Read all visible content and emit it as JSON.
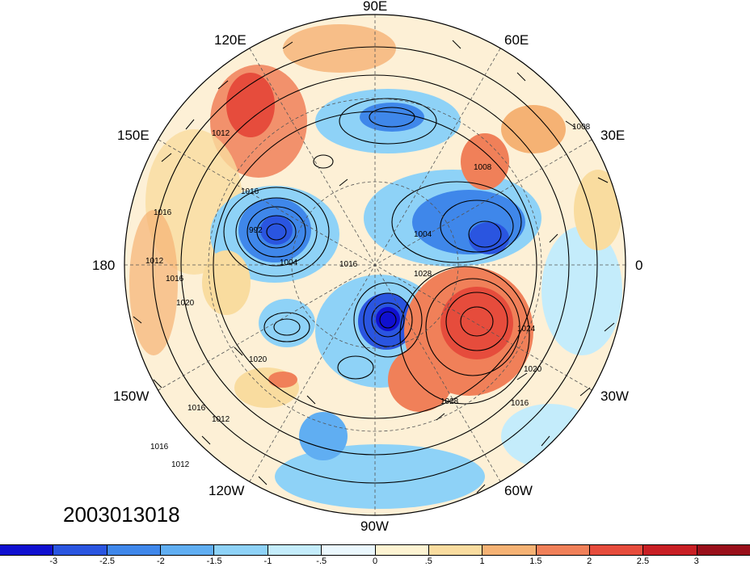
{
  "map": {
    "projection": "north polar stereographic",
    "longitude_labels": {
      "top": "90E",
      "top_right": "60E",
      "right_upper": "30E",
      "right": "0",
      "right_lower": "30W",
      "bottom_right": "60W",
      "bottom": "90W",
      "bottom_left": "120W",
      "left_lower": "150W",
      "left": "180",
      "left_upper": "150E",
      "top_left": "120E"
    },
    "timestamp": "2003013018",
    "isobar_labels": [
      "1008",
      "1012",
      "1016",
      "1016",
      "1012",
      "1016",
      "1020",
      "1020",
      "1016",
      "1012",
      "1016",
      "1012",
      "992",
      "1004",
      "1016",
      "1028",
      "1024",
      "1020",
      "1016",
      "1028",
      "1004",
      "1008"
    ],
    "contour_field": "sea level pressure (hPa)",
    "shading_field": "anomaly"
  },
  "colorbar": {
    "ticks": [
      "-3",
      "-2.5",
      "-2",
      "-1.5",
      "-1",
      "-.5",
      "0",
      ".5",
      "1",
      "1.5",
      "2",
      "2.5",
      "3"
    ],
    "colors": [
      "#1010d0",
      "#2a55e0",
      "#3f87ea",
      "#60aef2",
      "#8ed2f7",
      "#c4ecfb",
      "#eaf7fd",
      "#fdf3d2",
      "#f9dc9f",
      "#f5b274",
      "#f08059",
      "#e64c3c",
      "#c81f24",
      "#990f1a"
    ]
  }
}
